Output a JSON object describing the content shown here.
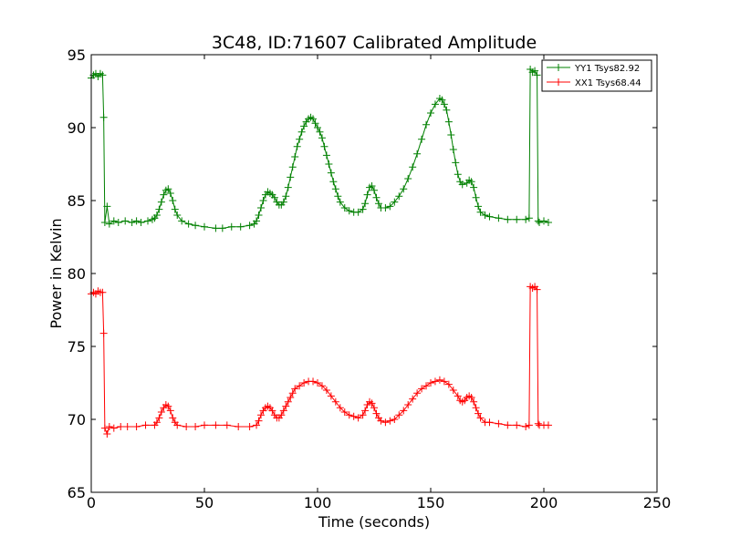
{
  "chart_data": {
    "type": "line",
    "title": "3C48, ID:71607 Calibrated Amplitude",
    "xlabel": "Time (seconds)",
    "ylabel": "Power in Kelvin",
    "xlim": [
      0,
      250
    ],
    "ylim": [
      65,
      95
    ],
    "xticks": [
      "0",
      "50",
      "100",
      "150",
      "200",
      "250"
    ],
    "yticks": [
      "65",
      "70",
      "75",
      "80",
      "85",
      "90",
      "95"
    ],
    "grid": false,
    "legend_position": "top-right",
    "marker": "+",
    "series": [
      {
        "name": "YY1 Tsys82.92",
        "color": "#008000",
        "points": [
          [
            0,
            93.4
          ],
          [
            1,
            93.6
          ],
          [
            2,
            93.7
          ],
          [
            3,
            93.5
          ],
          [
            4,
            93.7
          ],
          [
            5,
            93.6
          ],
          [
            5.5,
            90.7
          ],
          [
            6,
            83.5
          ],
          [
            7,
            84.6
          ],
          [
            8,
            83.4
          ],
          [
            10,
            83.6
          ],
          [
            12,
            83.5
          ],
          [
            15,
            83.6
          ],
          [
            18,
            83.5
          ],
          [
            20,
            83.6
          ],
          [
            22,
            83.5
          ],
          [
            25,
            83.6
          ],
          [
            27,
            83.7
          ],
          [
            28,
            83.8
          ],
          [
            29,
            84.0
          ],
          [
            30,
            84.4
          ],
          [
            31,
            84.9
          ],
          [
            32,
            85.4
          ],
          [
            33,
            85.7
          ],
          [
            34,
            85.8
          ],
          [
            35,
            85.5
          ],
          [
            36,
            85.0
          ],
          [
            37,
            84.4
          ],
          [
            38,
            84.0
          ],
          [
            40,
            83.6
          ],
          [
            43,
            83.4
          ],
          [
            46,
            83.3
          ],
          [
            50,
            83.2
          ],
          [
            55,
            83.1
          ],
          [
            58,
            83.1
          ],
          [
            62,
            83.2
          ],
          [
            66,
            83.2
          ],
          [
            70,
            83.3
          ],
          [
            72,
            83.4
          ],
          [
            73,
            83.6
          ],
          [
            74,
            84.0
          ],
          [
            75,
            84.5
          ],
          [
            76,
            85.0
          ],
          [
            77,
            85.4
          ],
          [
            78,
            85.6
          ],
          [
            79,
            85.5
          ],
          [
            80,
            85.4
          ],
          [
            81,
            85.2
          ],
          [
            82,
            84.9
          ],
          [
            83,
            84.7
          ],
          [
            84,
            84.7
          ],
          [
            85,
            84.9
          ],
          [
            86,
            85.3
          ],
          [
            87,
            85.9
          ],
          [
            88,
            86.6
          ],
          [
            89,
            87.3
          ],
          [
            90,
            88.0
          ],
          [
            91,
            88.7
          ],
          [
            92,
            89.2
          ],
          [
            93,
            89.7
          ],
          [
            94,
            90.1
          ],
          [
            95,
            90.4
          ],
          [
            96,
            90.6
          ],
          [
            97,
            90.7
          ],
          [
            98,
            90.6
          ],
          [
            99,
            90.3
          ],
          [
            100,
            90.0
          ],
          [
            101,
            89.7
          ],
          [
            102,
            89.3
          ],
          [
            103,
            88.7
          ],
          [
            104,
            88.1
          ],
          [
            105,
            87.5
          ],
          [
            106,
            86.9
          ],
          [
            107,
            86.3
          ],
          [
            108,
            85.8
          ],
          [
            109,
            85.3
          ],
          [
            110,
            84.9
          ],
          [
            112,
            84.5
          ],
          [
            114,
            84.3
          ],
          [
            116,
            84.2
          ],
          [
            118,
            84.2
          ],
          [
            120,
            84.4
          ],
          [
            121,
            84.8
          ],
          [
            122,
            85.4
          ],
          [
            123,
            85.9
          ],
          [
            124,
            86.0
          ],
          [
            125,
            85.7
          ],
          [
            126,
            85.2
          ],
          [
            127,
            84.8
          ],
          [
            128,
            84.5
          ],
          [
            130,
            84.5
          ],
          [
            132,
            84.6
          ],
          [
            134,
            84.9
          ],
          [
            136,
            85.3
          ],
          [
            138,
            85.8
          ],
          [
            140,
            86.5
          ],
          [
            142,
            87.3
          ],
          [
            144,
            88.2
          ],
          [
            146,
            89.2
          ],
          [
            148,
            90.2
          ],
          [
            150,
            91.0
          ],
          [
            152,
            91.6
          ],
          [
            154,
            92.0
          ],
          [
            155,
            91.9
          ],
          [
            156,
            91.6
          ],
          [
            157,
            91.2
          ],
          [
            158,
            90.4
          ],
          [
            159,
            89.5
          ],
          [
            160,
            88.5
          ],
          [
            161,
            87.6
          ],
          [
            162,
            86.8
          ],
          [
            163,
            86.3
          ],
          [
            164,
            86.1
          ],
          [
            166,
            86.2
          ],
          [
            167,
            86.4
          ],
          [
            168,
            86.3
          ],
          [
            169,
            85.9
          ],
          [
            170,
            85.2
          ],
          [
            171,
            84.6
          ],
          [
            172,
            84.2
          ],
          [
            174,
            84.0
          ],
          [
            176,
            83.9
          ],
          [
            180,
            83.8
          ],
          [
            184,
            83.7
          ],
          [
            188,
            83.7
          ],
          [
            192,
            83.7
          ],
          [
            193.5,
            83.8
          ],
          [
            194,
            94.0
          ],
          [
            195,
            93.8
          ],
          [
            196,
            93.9
          ],
          [
            197,
            93.6
          ],
          [
            197.5,
            83.6
          ],
          [
            198,
            83.5
          ],
          [
            200,
            83.6
          ],
          [
            202,
            83.5
          ]
        ]
      },
      {
        "name": "XX1 Tsys68.44",
        "color": "#ff0000",
        "points": [
          [
            0,
            78.6
          ],
          [
            1,
            78.7
          ],
          [
            2,
            78.6
          ],
          [
            3,
            78.8
          ],
          [
            4,
            78.7
          ],
          [
            5,
            78.7
          ],
          [
            5.5,
            75.9
          ],
          [
            6,
            69.4
          ],
          [
            7,
            69.0
          ],
          [
            8,
            69.5
          ],
          [
            10,
            69.4
          ],
          [
            13,
            69.5
          ],
          [
            16,
            69.5
          ],
          [
            20,
            69.5
          ],
          [
            24,
            69.6
          ],
          [
            28,
            69.6
          ],
          [
            29,
            69.8
          ],
          [
            30,
            70.1
          ],
          [
            31,
            70.5
          ],
          [
            32,
            70.8
          ],
          [
            33,
            71.0
          ],
          [
            34,
            70.9
          ],
          [
            35,
            70.6
          ],
          [
            36,
            70.1
          ],
          [
            37,
            69.8
          ],
          [
            38,
            69.6
          ],
          [
            42,
            69.5
          ],
          [
            46,
            69.5
          ],
          [
            50,
            69.6
          ],
          [
            55,
            69.6
          ],
          [
            60,
            69.6
          ],
          [
            65,
            69.5
          ],
          [
            70,
            69.5
          ],
          [
            73,
            69.6
          ],
          [
            74,
            69.9
          ],
          [
            75,
            70.3
          ],
          [
            76,
            70.6
          ],
          [
            77,
            70.8
          ],
          [
            78,
            70.9
          ],
          [
            79,
            70.8
          ],
          [
            80,
            70.6
          ],
          [
            81,
            70.3
          ],
          [
            82,
            70.1
          ],
          [
            83,
            70.1
          ],
          [
            84,
            70.3
          ],
          [
            85,
            70.6
          ],
          [
            86,
            70.9
          ],
          [
            87,
            71.2
          ],
          [
            88,
            71.5
          ],
          [
            89,
            71.8
          ],
          [
            90,
            72.1
          ],
          [
            92,
            72.3
          ],
          [
            94,
            72.5
          ],
          [
            96,
            72.6
          ],
          [
            98,
            72.6
          ],
          [
            100,
            72.5
          ],
          [
            102,
            72.3
          ],
          [
            104,
            72.0
          ],
          [
            106,
            71.6
          ],
          [
            108,
            71.2
          ],
          [
            110,
            70.8
          ],
          [
            112,
            70.5
          ],
          [
            114,
            70.3
          ],
          [
            116,
            70.2
          ],
          [
            118,
            70.1
          ],
          [
            120,
            70.3
          ],
          [
            121,
            70.6
          ],
          [
            122,
            71.0
          ],
          [
            123,
            71.2
          ],
          [
            124,
            71.1
          ],
          [
            125,
            70.8
          ],
          [
            126,
            70.4
          ],
          [
            127,
            70.1
          ],
          [
            128,
            69.9
          ],
          [
            130,
            69.8
          ],
          [
            132,
            69.9
          ],
          [
            134,
            70.0
          ],
          [
            136,
            70.3
          ],
          [
            138,
            70.6
          ],
          [
            140,
            71.0
          ],
          [
            142,
            71.4
          ],
          [
            144,
            71.8
          ],
          [
            146,
            72.1
          ],
          [
            148,
            72.3
          ],
          [
            150,
            72.5
          ],
          [
            152,
            72.6
          ],
          [
            154,
            72.7
          ],
          [
            156,
            72.6
          ],
          [
            158,
            72.4
          ],
          [
            160,
            72.0
          ],
          [
            162,
            71.6
          ],
          [
            163,
            71.3
          ],
          [
            164,
            71.2
          ],
          [
            165,
            71.3
          ],
          [
            166,
            71.5
          ],
          [
            167,
            71.6
          ],
          [
            168,
            71.5
          ],
          [
            169,
            71.2
          ],
          [
            170,
            70.8
          ],
          [
            171,
            70.4
          ],
          [
            172,
            70.1
          ],
          [
            174,
            69.8
          ],
          [
            176,
            69.8
          ],
          [
            180,
            69.7
          ],
          [
            184,
            69.6
          ],
          [
            188,
            69.6
          ],
          [
            192,
            69.5
          ],
          [
            193.5,
            69.6
          ],
          [
            194,
            79.1
          ],
          [
            195,
            79.0
          ],
          [
            196,
            79.1
          ],
          [
            197,
            78.9
          ],
          [
            197.5,
            69.7
          ],
          [
            198,
            69.6
          ],
          [
            200,
            69.6
          ],
          [
            202,
            69.6
          ]
        ]
      }
    ]
  }
}
